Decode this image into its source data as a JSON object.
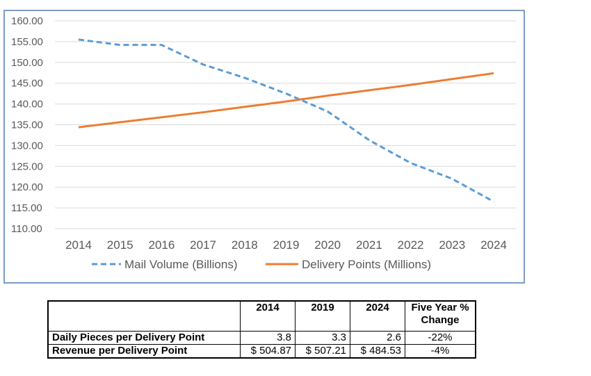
{
  "chart_data": {
    "type": "line",
    "x": [
      "2014",
      "2015",
      "2016",
      "2017",
      "2018",
      "2019",
      "2020",
      "2021",
      "2022",
      "2023",
      "2024"
    ],
    "y_ticks": [
      "160.00",
      "155.00",
      "150.00",
      "145.00",
      "140.00",
      "135.00",
      "130.00",
      "125.00",
      "120.00",
      "115.00",
      "110.00"
    ],
    "ylim": [
      110,
      160
    ],
    "grid": true,
    "legend_position": "bottom",
    "series": [
      {
        "name": "Mail Volume (Billions)",
        "color": "#5b9bd5",
        "dashed": true,
        "values": [
          155.5,
          154.2,
          154.2,
          149.5,
          146.3,
          142.5,
          138.2,
          131.3,
          125.8,
          122.0,
          116.5
        ]
      },
      {
        "name": "Delivery Points (Millions)",
        "color": "#ed7d31",
        "dashed": false,
        "values": [
          134.4,
          135.6,
          136.8,
          138.0,
          139.3,
          140.6,
          142.0,
          143.3,
          144.6,
          146.0,
          147.4
        ]
      }
    ]
  },
  "table": {
    "headers": [
      "",
      "2014",
      "2019",
      "2024",
      "Five Year %\nChange"
    ],
    "rows": [
      {
        "label": "Daily Pieces per Delivery Point",
        "values": [
          "3.8",
          "3.3",
          "2.6"
        ],
        "change": "-22%"
      },
      {
        "label": "Revenue per Delivery Point",
        "values": [
          "$ 504.87",
          "$ 507.21",
          "$ 484.53"
        ],
        "change": "-4%"
      }
    ]
  }
}
